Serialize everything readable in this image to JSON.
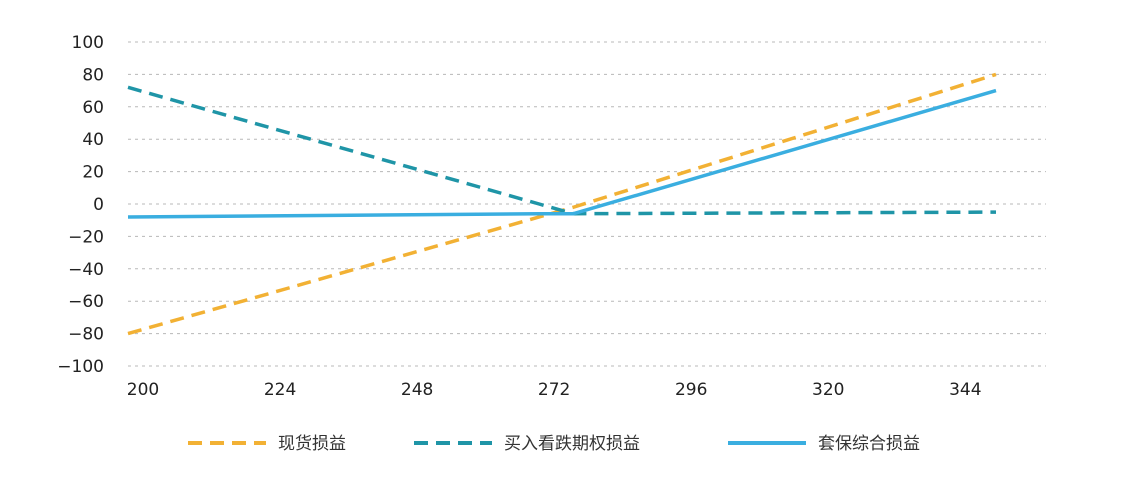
{
  "chart_data": {
    "type": "line",
    "title": "",
    "xlabel": "",
    "ylabel": "",
    "x": [
      200,
      272,
      278,
      352
    ],
    "x_ticks": [
      200,
      224,
      248,
      272,
      296,
      320,
      344
    ],
    "xlim": [
      200,
      352
    ],
    "ylim": [
      -100,
      100
    ],
    "y_ticks": [
      100,
      80,
      60,
      40,
      20,
      0,
      -20,
      -40,
      -60,
      -80,
      -100
    ],
    "y_tick_labels": [
      "100",
      "80",
      "60",
      "40",
      "20",
      "0",
      "−20",
      "−40",
      "−60",
      "−80",
      "−100"
    ],
    "grid": true,
    "legend_position": "bottom",
    "series": [
      {
        "name": "现货损益",
        "color": "#f2b134",
        "style": "dashed",
        "points": [
          [
            200,
            -80
          ],
          [
            272,
            -8
          ],
          [
            278,
            -2
          ],
          [
            352,
            80
          ]
        ]
      },
      {
        "name": "买入看跌期权损益",
        "color": "#1f95a7",
        "style": "dashed",
        "points": [
          [
            200,
            72
          ],
          [
            272,
            0
          ],
          [
            278,
            -6
          ],
          [
            352,
            -5
          ]
        ]
      },
      {
        "name": "套保综合损益",
        "color": "#3aaee0",
        "style": "solid",
        "points": [
          [
            200,
            -8
          ],
          [
            272,
            -6
          ],
          [
            278,
            -6
          ],
          [
            352,
            70
          ]
        ]
      }
    ]
  }
}
